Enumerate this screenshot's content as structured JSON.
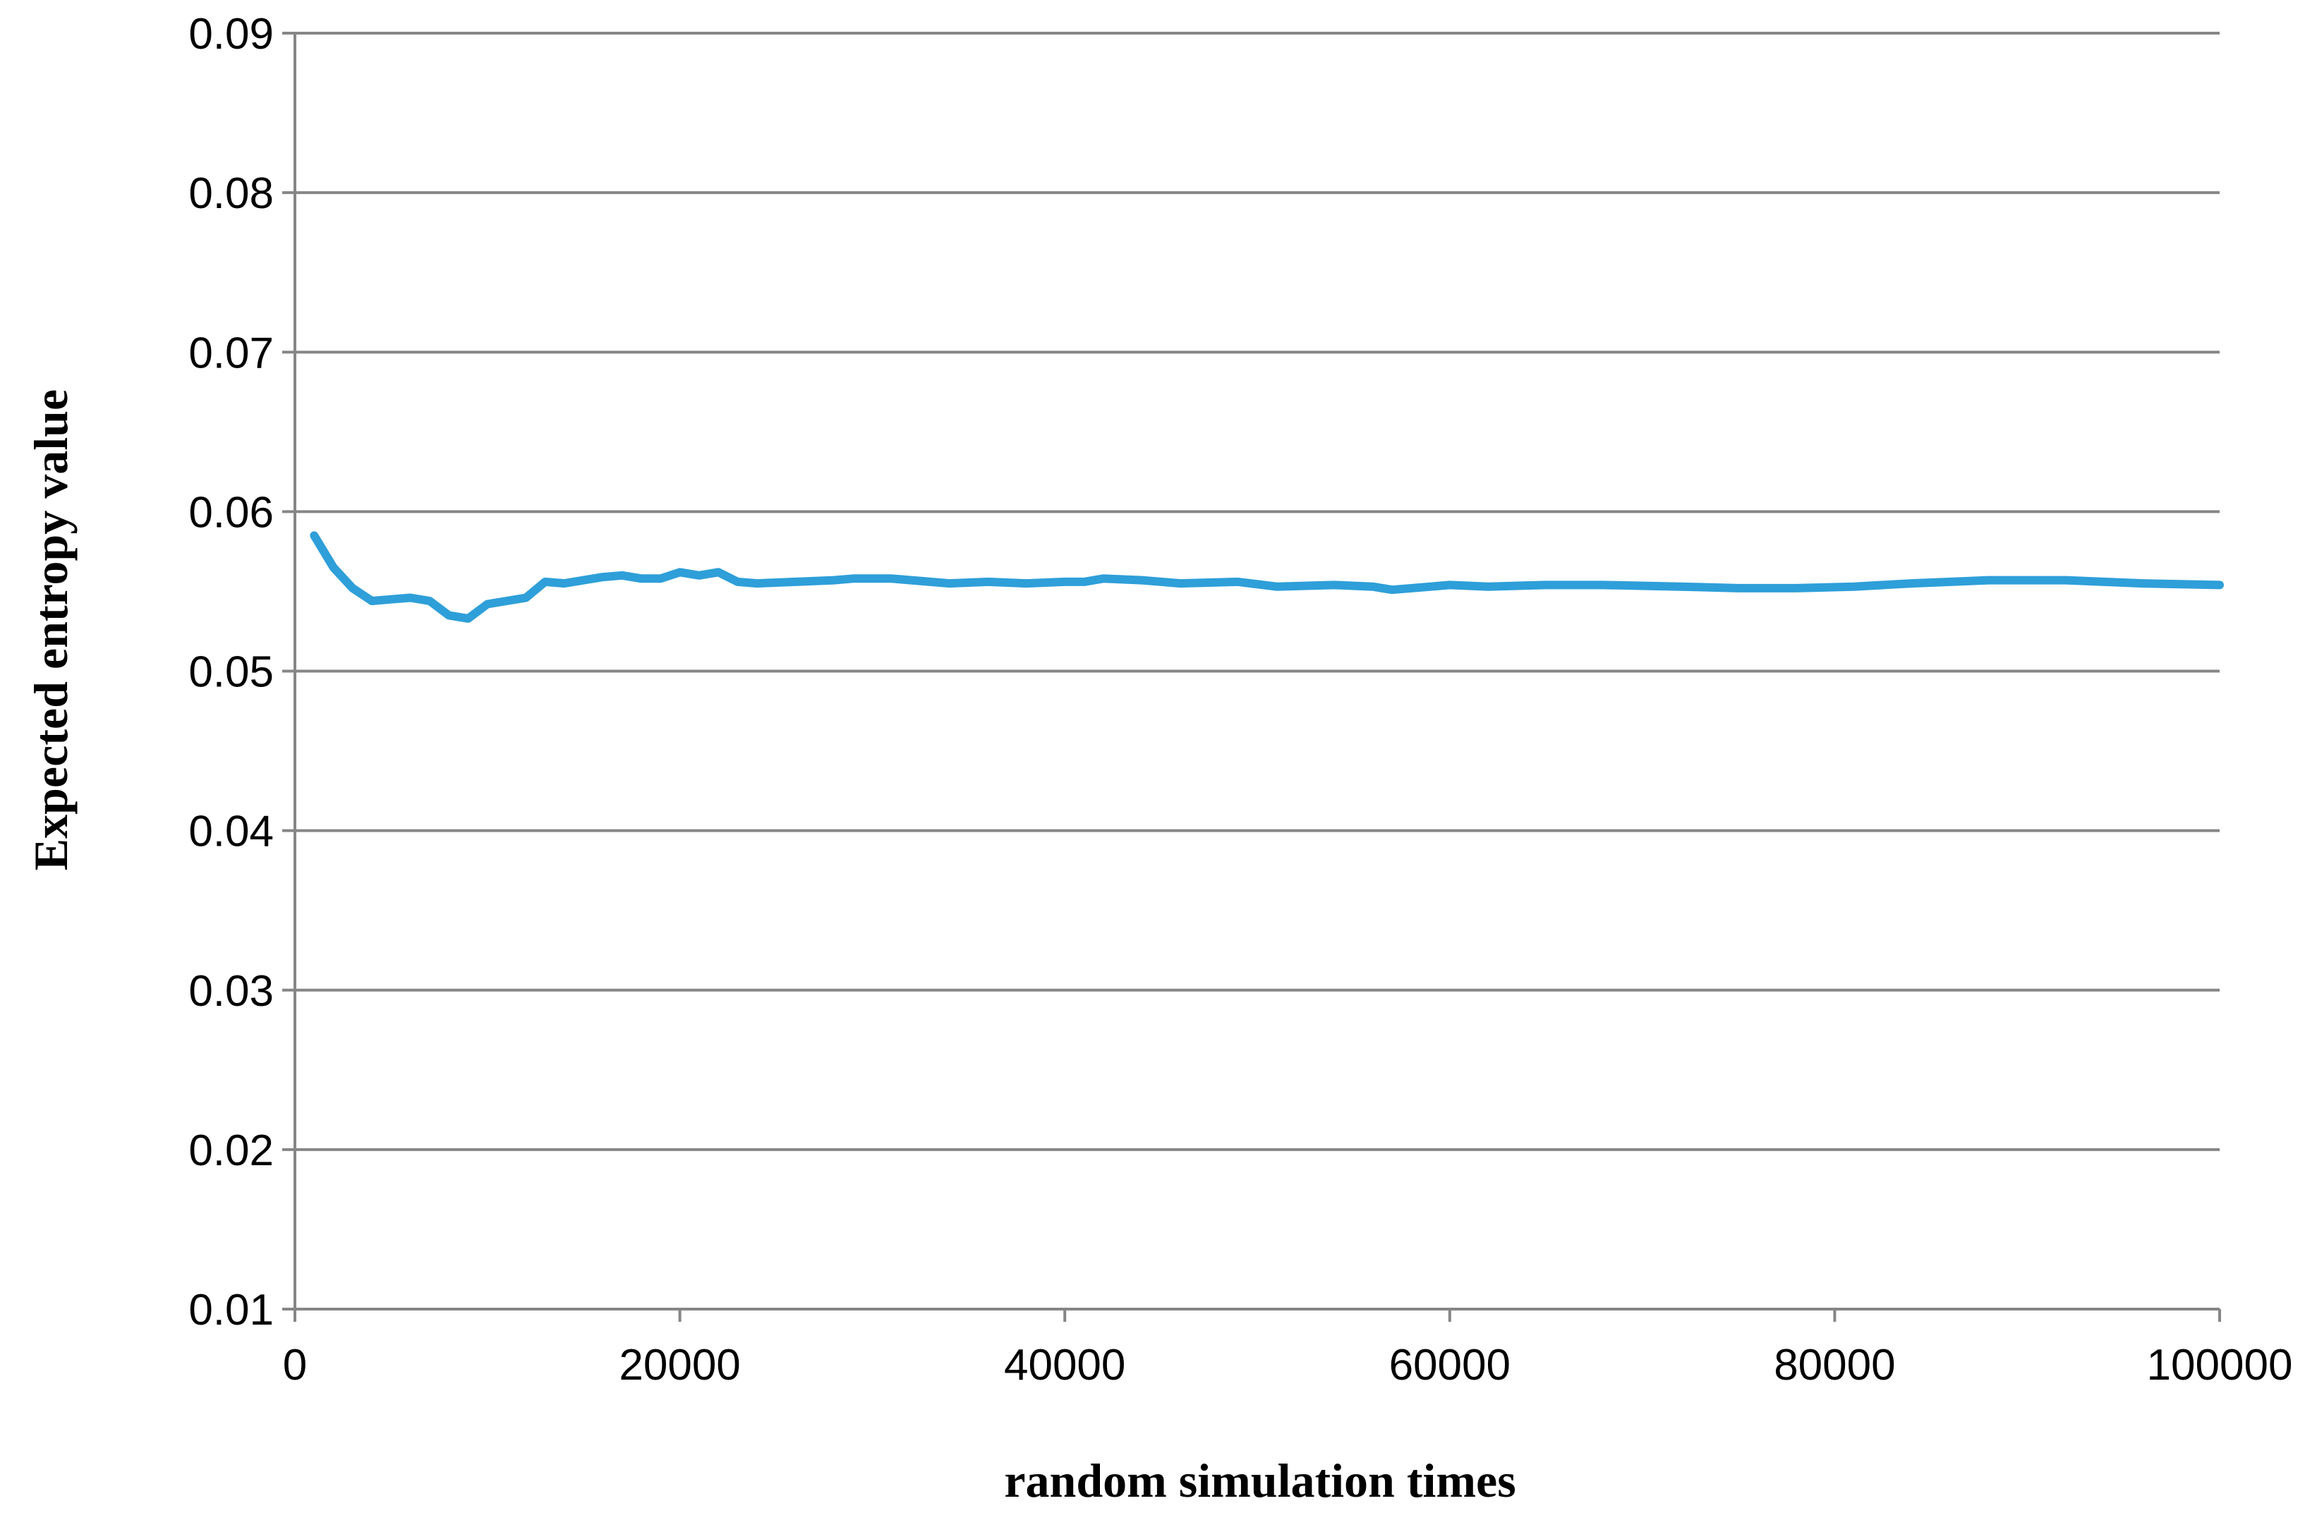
{
  "chart_data": {
    "type": "line",
    "xlabel": "random simulation times",
    "ylabel": "Expected entropy value",
    "xlim": [
      0,
      100000
    ],
    "ylim": [
      0.01,
      0.09
    ],
    "x_ticks": [
      0,
      20000,
      40000,
      60000,
      80000,
      100000
    ],
    "y_ticks": [
      "0.01",
      "0.02",
      "0.03",
      "0.04",
      "0.05",
      "0.06",
      "0.07",
      "0.08",
      "0.09"
    ],
    "grid": true,
    "series": [
      {
        "color": "#2E9FD9",
        "x": [
          1000,
          2000,
          3000,
          4000,
          5000,
          6000,
          7000,
          8000,
          9000,
          10000,
          11000,
          12000,
          13000,
          14000,
          15000,
          16000,
          17000,
          18000,
          19000,
          20000,
          21000,
          22000,
          23000,
          24000,
          26000,
          28000,
          29000,
          31000,
          34000,
          36000,
          38000,
          40000,
          41000,
          42000,
          44000,
          46000,
          49000,
          51000,
          54000,
          56000,
          57000,
          60000,
          62000,
          65000,
          68000,
          72000,
          75000,
          78000,
          81000,
          84000,
          88000,
          92000,
          96000,
          100000
        ],
        "values": [
          0.0585,
          0.0565,
          0.0552,
          0.0544,
          0.0545,
          0.0546,
          0.0544,
          0.0535,
          0.0533,
          0.0542,
          0.0544,
          0.0546,
          0.0556,
          0.0555,
          0.0557,
          0.0559,
          0.056,
          0.0558,
          0.0558,
          0.0562,
          0.056,
          0.0562,
          0.0556,
          0.0555,
          0.0556,
          0.0557,
          0.0558,
          0.0558,
          0.0555,
          0.0556,
          0.0555,
          0.0556,
          0.0556,
          0.0558,
          0.0557,
          0.0555,
          0.0556,
          0.0553,
          0.0554,
          0.0553,
          0.0551,
          0.0554,
          0.0553,
          0.0554,
          0.0554,
          0.0553,
          0.0552,
          0.0552,
          0.0553,
          0.0555,
          0.0557,
          0.0557,
          0.0555,
          0.0554
        ]
      }
    ]
  }
}
